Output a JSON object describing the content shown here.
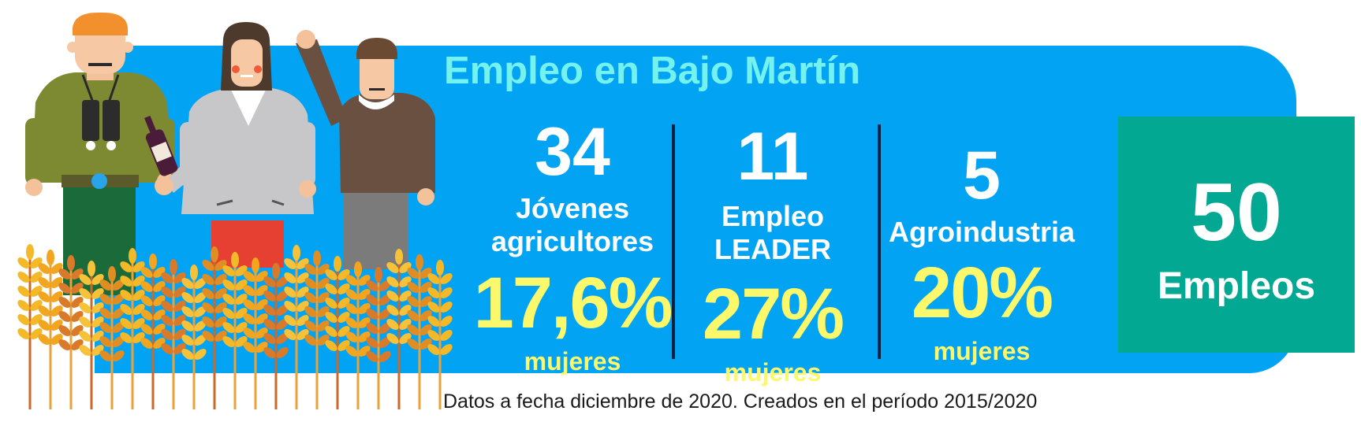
{
  "title": "Empleo en Bajo Martín",
  "stats": [
    {
      "number": "34",
      "label_lines": [
        "Jóvenes",
        "agricultores"
      ],
      "percent": "17,6%",
      "percent_label": "mujeres"
    },
    {
      "number": "11",
      "label_lines": [
        "Empleo",
        "LEADER"
      ],
      "percent": "27%",
      "percent_label": "mujeres"
    },
    {
      "number": "5",
      "label_lines": [
        "Agroindustria"
      ],
      "percent": "20%",
      "percent_label": "mujeres"
    }
  ],
  "total": {
    "number": "50",
    "label": "Empleos"
  },
  "footnote": "Datos a fecha diciembre de 2020. Creados en el período 2015/2020",
  "illustration_icons": [
    "farmer-with-binoculars-icon",
    "woman-with-wine-bottle-icon",
    "man-waving-icon",
    "wheat-field-icon"
  ],
  "colors": {
    "banner": "#03a3f4",
    "title": "#74f2f0",
    "highlight": "#fbf86b",
    "total_box": "#03a892",
    "divider": "#0b2340"
  }
}
